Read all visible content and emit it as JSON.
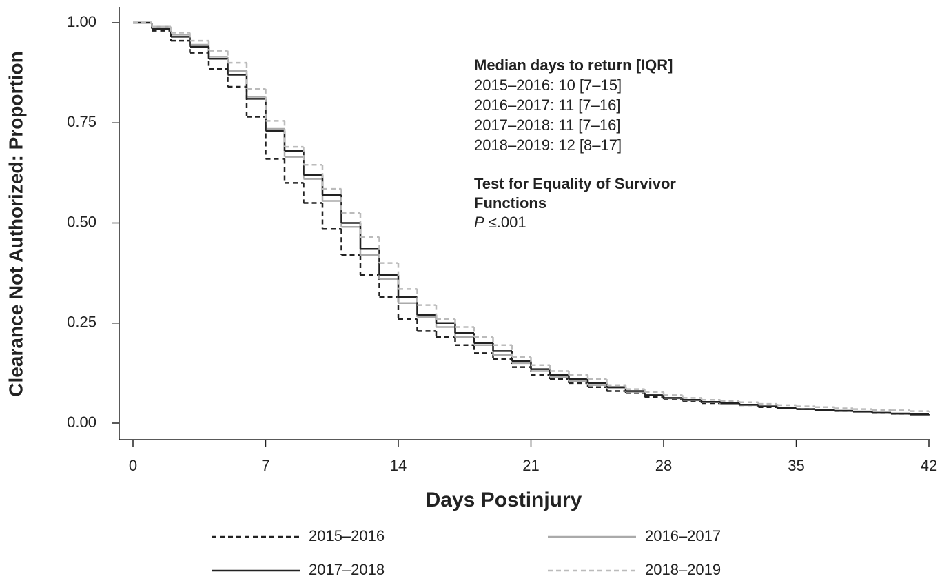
{
  "chart_data": {
    "type": "step",
    "x_label": "Days Postinjury",
    "y_label": "Clearance Not Authorized: Proportion",
    "x": [
      0,
      1,
      2,
      3,
      4,
      5,
      6,
      7,
      8,
      9,
      10,
      11,
      12,
      13,
      14,
      15,
      16,
      17,
      18,
      19,
      20,
      21,
      22,
      23,
      24,
      25,
      26,
      27,
      28,
      29,
      30,
      31,
      32,
      33,
      34,
      35,
      36,
      37,
      38,
      39,
      40,
      41,
      42
    ],
    "xlim": [
      0,
      42
    ],
    "xticks": [
      0,
      7,
      14,
      21,
      28,
      35,
      42
    ],
    "ylim": [
      0,
      1
    ],
    "yticks": [
      {
        "value": 0,
        "label": "0.00"
      },
      {
        "value": 0.25,
        "label": "0.25"
      },
      {
        "value": 0.5,
        "label": "0.50"
      },
      {
        "value": 0.75,
        "label": "0.75"
      },
      {
        "value": 1,
        "label": "1.00"
      }
    ],
    "series": [
      {
        "name": "2015–2016",
        "color": "#222222",
        "dash": true,
        "values": [
          1.0,
          0.98,
          0.955,
          0.925,
          0.885,
          0.84,
          0.765,
          0.66,
          0.6,
          0.55,
          0.485,
          0.42,
          0.37,
          0.315,
          0.26,
          0.23,
          0.215,
          0.195,
          0.175,
          0.16,
          0.14,
          0.12,
          0.11,
          0.1,
          0.09,
          0.08,
          0.075,
          0.065,
          0.06,
          0.055,
          0.05,
          0.048,
          0.045,
          0.04,
          0.037,
          0.035,
          0.032,
          0.03,
          0.028,
          0.025,
          0.023,
          0.022,
          0.02
        ]
      },
      {
        "name": "2016–2017",
        "color": "#aaaaaa",
        "dash": false,
        "values": [
          1.0,
          0.99,
          0.97,
          0.945,
          0.915,
          0.88,
          0.815,
          0.735,
          0.665,
          0.61,
          0.555,
          0.49,
          0.42,
          0.36,
          0.3,
          0.265,
          0.24,
          0.215,
          0.195,
          0.17,
          0.15,
          0.13,
          0.115,
          0.105,
          0.095,
          0.087,
          0.078,
          0.07,
          0.062,
          0.057,
          0.052,
          0.048,
          0.045,
          0.042,
          0.038,
          0.035,
          0.032,
          0.03,
          0.028,
          0.025,
          0.023,
          0.021,
          0.02
        ]
      },
      {
        "name": "2017–2018",
        "color": "#222222",
        "dash": false,
        "values": [
          1.0,
          0.985,
          0.965,
          0.94,
          0.91,
          0.87,
          0.81,
          0.73,
          0.68,
          0.62,
          0.57,
          0.5,
          0.435,
          0.37,
          0.315,
          0.27,
          0.25,
          0.225,
          0.2,
          0.18,
          0.155,
          0.135,
          0.12,
          0.11,
          0.1,
          0.09,
          0.08,
          0.07,
          0.063,
          0.058,
          0.053,
          0.05,
          0.046,
          0.042,
          0.038,
          0.035,
          0.033,
          0.031,
          0.029,
          0.026,
          0.024,
          0.022,
          0.02
        ]
      },
      {
        "name": "2018–2019",
        "color": "#bbbbbb",
        "dash": true,
        "values": [
          1.0,
          0.99,
          0.975,
          0.955,
          0.93,
          0.9,
          0.835,
          0.755,
          0.69,
          0.645,
          0.585,
          0.525,
          0.465,
          0.4,
          0.335,
          0.295,
          0.26,
          0.24,
          0.215,
          0.195,
          0.165,
          0.145,
          0.13,
          0.12,
          0.11,
          0.095,
          0.085,
          0.077,
          0.07,
          0.063,
          0.058,
          0.055,
          0.052,
          0.048,
          0.045,
          0.042,
          0.04,
          0.037,
          0.035,
          0.033,
          0.032,
          0.03,
          0.028
        ]
      }
    ],
    "annotation": {
      "median_title": "Median days to return [IQR]",
      "median_lines": [
        "2015–2016: 10 [7–15]",
        "2016–2017: 11 [7–16]",
        "2017–2018: 11 [7–16]",
        "2018–2019: 12 [8–17]"
      ],
      "test_title": [
        "Test for Equality of Survivor",
        "Functions"
      ],
      "p_symbol": "P",
      "p_value": "≤.001"
    }
  }
}
